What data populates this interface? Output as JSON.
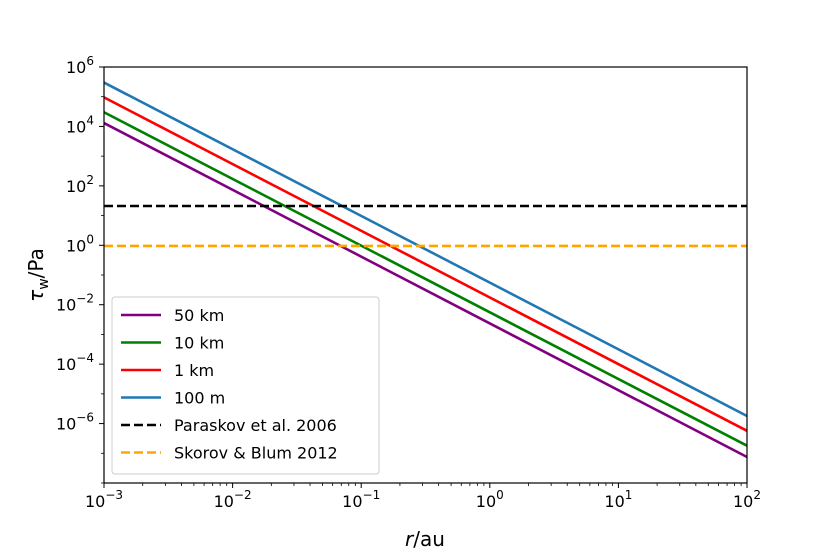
{
  "chart_data": {
    "type": "line",
    "title": "",
    "xlabel_var": "r",
    "xlabel_unit": "/au",
    "ylabel_var": "τ",
    "ylabel_sub": "w",
    "ylabel_unit": "/Pa",
    "xscale": "log",
    "yscale": "log",
    "xlim": [
      0.001,
      100
    ],
    "ylim": [
      1e-08,
      1000000.0
    ],
    "x_ticks": [
      {
        "value": 0.001,
        "base": "10",
        "exp": "−3"
      },
      {
        "value": 0.01,
        "base": "10",
        "exp": "−2"
      },
      {
        "value": 0.1,
        "base": "10",
        "exp": "−1"
      },
      {
        "value": 1,
        "base": "10",
        "exp": "0"
      },
      {
        "value": 10,
        "base": "10",
        "exp": "1"
      },
      {
        "value": 100,
        "base": "10",
        "exp": "2"
      }
    ],
    "y_ticks": [
      {
        "value": 1e-06,
        "base": "10",
        "exp": "−6"
      },
      {
        "value": 0.0001,
        "base": "10",
        "exp": "−4"
      },
      {
        "value": 0.01,
        "base": "10",
        "exp": "−2"
      },
      {
        "value": 1,
        "base": "10",
        "exp": "0"
      },
      {
        "value": 100,
        "base": "10",
        "exp": "2"
      },
      {
        "value": 10000,
        "base": "10",
        "exp": "4"
      },
      {
        "value": 1000000,
        "base": "10",
        "exp": "6"
      }
    ],
    "series": [
      {
        "name": "50 km",
        "color": "#800080",
        "dash": "solid",
        "x": [
          0.001,
          100
        ],
        "y": [
          13000,
          7.5e-08
        ]
      },
      {
        "name": "10 km",
        "color": "#008000",
        "dash": "solid",
        "x": [
          0.001,
          100
        ],
        "y": [
          30000,
          1.8e-07
        ]
      },
      {
        "name": "1 km",
        "color": "#ff0000",
        "dash": "solid",
        "x": [
          0.001,
          100
        ],
        "y": [
          95000,
          5.7e-07
        ]
      },
      {
        "name": "100 m",
        "color": "#1f77b4",
        "dash": "solid",
        "x": [
          0.001,
          100
        ],
        "y": [
          300000,
          1.8e-06
        ]
      },
      {
        "name": "Paraskov et al. 2006",
        "color": "#000000",
        "dash": "dashed",
        "x": [
          0.001,
          100
        ],
        "y": [
          21,
          21
        ]
      },
      {
        "name": "Skorov & Blum 2012",
        "color": "#ffa500",
        "dash": "dashed",
        "x": [
          0.001,
          100
        ],
        "y": [
          0.95,
          0.95
        ]
      }
    ],
    "legend_position": "lower-left",
    "grid": false
  }
}
